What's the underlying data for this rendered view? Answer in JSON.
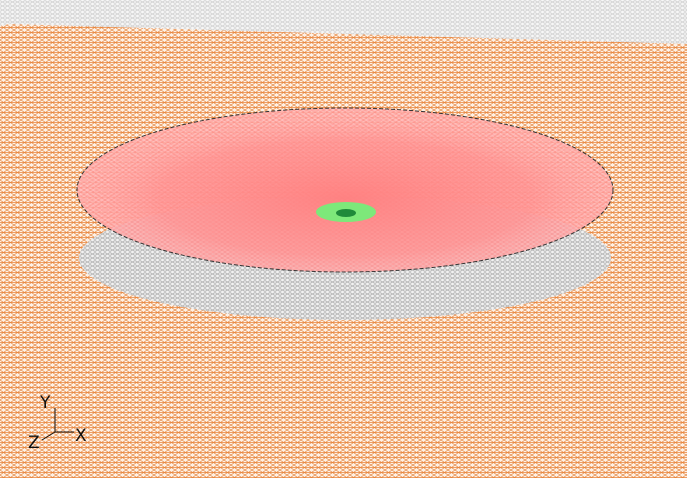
{
  "axes_triad": {
    "y_label": "Y",
    "z_label": "Z",
    "x_label": "X"
  }
}
